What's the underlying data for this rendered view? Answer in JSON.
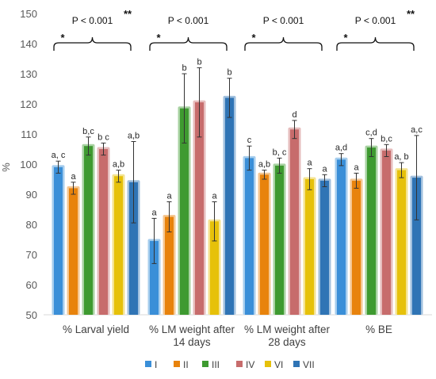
{
  "chart_data": {
    "type": "bar",
    "ylabel": "%",
    "ylim": [
      50,
      150
    ],
    "yticks": [
      50,
      60,
      70,
      80,
      90,
      100,
      110,
      120,
      130,
      140,
      150
    ],
    "categories": [
      [
        "% Larval yield"
      ],
      [
        "% LM weight after",
        "14 days"
      ],
      [
        "% LM weight after",
        "28 days"
      ],
      [
        "% BE"
      ]
    ],
    "series": [
      {
        "name": "I",
        "color": "#3a8fd8",
        "values": [
          99,
          74.5,
          102,
          101.5
        ],
        "errors": [
          2,
          7.5,
          4,
          2
        ],
        "letters": [
          "a, c",
          "a",
          "c",
          "a,d"
        ]
      },
      {
        "name": "II",
        "color": "#e8830c",
        "values": [
          92,
          82.5,
          96.5,
          94.5
        ],
        "errors": [
          2,
          5,
          1.5,
          2.5
        ],
        "letters": [
          "a",
          "a",
          "a,b",
          "a"
        ]
      },
      {
        "name": "III",
        "color": "#3e9a30",
        "values": [
          106,
          118.5,
          99.5,
          105.5
        ],
        "errors": [
          3,
          11.5,
          2.5,
          3
        ],
        "letters": [
          "b,c",
          "b",
          "b, c",
          "c,d"
        ]
      },
      {
        "name": "IV",
        "color": "#c76c6c",
        "values": [
          105,
          120.5,
          111.5,
          104.5
        ],
        "errors": [
          2,
          11.5,
          3,
          2
        ],
        "letters": [
          "b c",
          "b",
          "d",
          "b,c"
        ]
      },
      {
        "name": "VI",
        "color": "#e6c10a",
        "values": [
          96,
          81,
          95,
          98
        ],
        "errors": [
          2,
          6.5,
          3.5,
          2.5
        ],
        "letters": [
          "a,b",
          "a",
          "a",
          "a, b"
        ]
      },
      {
        "name": "VII",
        "color": "#2f74b5",
        "values": [
          94,
          122,
          94.5,
          95.5
        ],
        "errors": [
          13.5,
          6.5,
          2,
          14
        ],
        "letters": [
          "a,b",
          "b",
          "a",
          "a,c"
        ]
      }
    ],
    "significance": [
      {
        "p": "P < 0.001",
        "left": "*",
        "right": "**"
      },
      {
        "p": "P < 0.001",
        "left": "*",
        "right": ""
      },
      {
        "p": "P < 0.001",
        "left": "*",
        "right": ""
      },
      {
        "p": "P < 0.001",
        "left": "*",
        "right": "**"
      }
    ],
    "grid": false,
    "legend_position": "bottom"
  }
}
